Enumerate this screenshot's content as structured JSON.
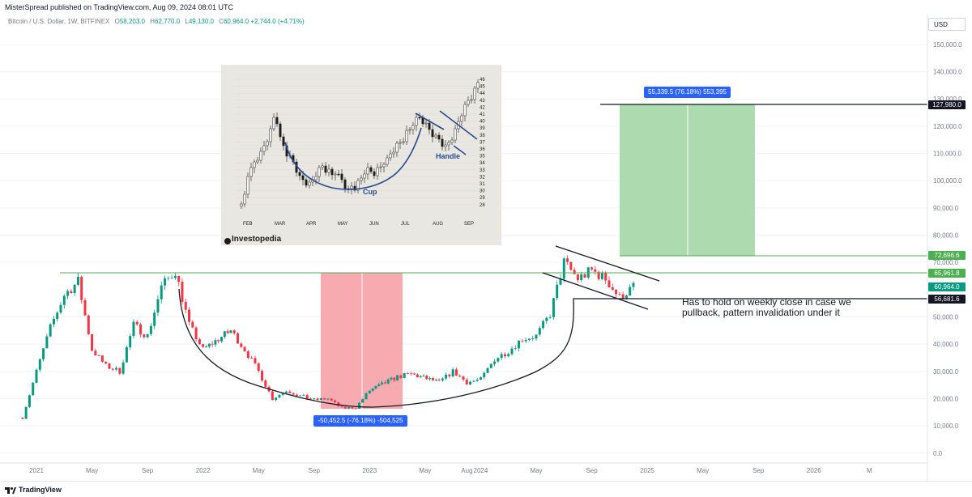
{
  "header": {
    "published": "MisterSpread published on TradingView.com, Aug 09, 2024 08:01 UTC"
  },
  "legend": {
    "symbol": "Bitcoin / U.S. Dollar, 1W, BITFINEX",
    "open_label": "O",
    "open": "58,203.0",
    "high_label": "H",
    "high": "62,770.0",
    "low_label": "L",
    "low": "49,130.0",
    "close_label": "C",
    "close": "60,964.0",
    "change": "+2,744.0 (+4.71%)"
  },
  "currency": "USD",
  "footer": {
    "brand": "TradingView"
  },
  "inset": {
    "brand": "Investopedia",
    "cup_label": "Cup",
    "handle_label": "Handle",
    "months": [
      "FEB",
      "MAR",
      "APR",
      "MAY",
      "JUN",
      "JUL",
      "AUG",
      "SEP"
    ],
    "axis_ticks": [
      "46",
      "45",
      "44",
      "43",
      "42",
      "41",
      "40",
      "39",
      "38",
      "37",
      "36",
      "35",
      "34",
      "33",
      "32",
      "31",
      "30",
      "29",
      "28"
    ]
  },
  "annotation": "Has to hold on weekly close in case we\npullback, pattern invalidation under it",
  "measures": {
    "long_label": "55,339.5 (76.18%) 553,395",
    "short_label": "-50,452.5 (-76.18%) -504,525"
  },
  "price_tags": [
    {
      "value": "127,980.0",
      "bg": "#131722",
      "fg": "#ffffff"
    },
    {
      "value": "72,696.6",
      "bg": "#4caf50",
      "fg": "#ffffff"
    },
    {
      "value": "65,961.8",
      "bg": "#4caf50",
      "fg": "#ffffff"
    },
    {
      "value": "60,964.0",
      "bg": "#089981",
      "fg": "#ffffff"
    },
    {
      "value": "56,681.6",
      "bg": "#131722",
      "fg": "#ffffff"
    }
  ],
  "chart_data": {
    "type": "candlestick",
    "timeframe": "1W",
    "y_axis_ticks": [
      "150,000.0",
      "140,000.0",
      "130,000.0",
      "120,000.0",
      "110,000.0",
      "100,000.0",
      "90,000.0",
      "80,000.0",
      "70,000.0",
      "50,000.0",
      "40,000.0",
      "30,000.0",
      "20,000.0",
      "10,000.0",
      "0.0"
    ],
    "x_axis_ticks": [
      "2021",
      "May",
      "Sep",
      "2022",
      "May",
      "Sep",
      "2023",
      "May",
      "Aug",
      "2024",
      "May",
      "Sep",
      "2025",
      "May",
      "Sep",
      "2026",
      "M"
    ],
    "ylim": [
      0,
      155000
    ],
    "colors": {
      "up": "#089981",
      "down": "#f23645",
      "resistance": "#4caf50",
      "target_zone": "#a5d6a7",
      "drawdown_zone": "#f7a1a8"
    },
    "levels": {
      "target": 127980.0,
      "zone_bottom": 72696.6,
      "resistance": 65961.8,
      "current": 60964.0,
      "invalidation": 56681.6
    },
    "anchors": [
      {
        "t": "2020-12",
        "p": 13000
      },
      {
        "t": "2021-01",
        "p": 30000
      },
      {
        "t": "2021-02",
        "p": 46000
      },
      {
        "t": "2021-03",
        "p": 58000
      },
      {
        "t": "2021-04",
        "p": 63000
      },
      {
        "t": "2021-05",
        "p": 38000
      },
      {
        "t": "2021-06",
        "p": 32000
      },
      {
        "t": "2021-07",
        "p": 30000
      },
      {
        "t": "2021-08",
        "p": 47000
      },
      {
        "t": "2021-09",
        "p": 43000
      },
      {
        "t": "2021-10",
        "p": 61000
      },
      {
        "t": "2021-11",
        "p": 67000
      },
      {
        "t": "2021-12",
        "p": 47000
      },
      {
        "t": "2022-01",
        "p": 38000
      },
      {
        "t": "2022-03",
        "p": 45000
      },
      {
        "t": "2022-04",
        "p": 38000
      },
      {
        "t": "2022-05",
        "p": 30000
      },
      {
        "t": "2022-06",
        "p": 20000
      },
      {
        "t": "2022-07",
        "p": 23000
      },
      {
        "t": "2022-08",
        "p": 21000
      },
      {
        "t": "2022-09",
        "p": 19500
      },
      {
        "t": "2022-10",
        "p": 20000
      },
      {
        "t": "2022-11",
        "p": 16500
      },
      {
        "t": "2022-12",
        "p": 16800
      },
      {
        "t": "2023-01",
        "p": 23000
      },
      {
        "t": "2023-03",
        "p": 28000
      },
      {
        "t": "2023-04",
        "p": 29000
      },
      {
        "t": "2023-06",
        "p": 26000
      },
      {
        "t": "2023-07",
        "p": 30000
      },
      {
        "t": "2023-08",
        "p": 26000
      },
      {
        "t": "2023-09",
        "p": 27000
      },
      {
        "t": "2023-10",
        "p": 34500
      },
      {
        "t": "2023-11",
        "p": 37500
      },
      {
        "t": "2023-12",
        "p": 42000
      },
      {
        "t": "2024-01",
        "p": 43000
      },
      {
        "t": "2024-02",
        "p": 51000
      },
      {
        "t": "2024-03",
        "p": 70000
      },
      {
        "t": "2024-04",
        "p": 64000
      },
      {
        "t": "2024-05",
        "p": 67000
      },
      {
        "t": "2024-06",
        "p": 64000
      },
      {
        "t": "2024-07",
        "p": 57000
      },
      {
        "t": "2024-08",
        "p": 60964
      }
    ]
  }
}
